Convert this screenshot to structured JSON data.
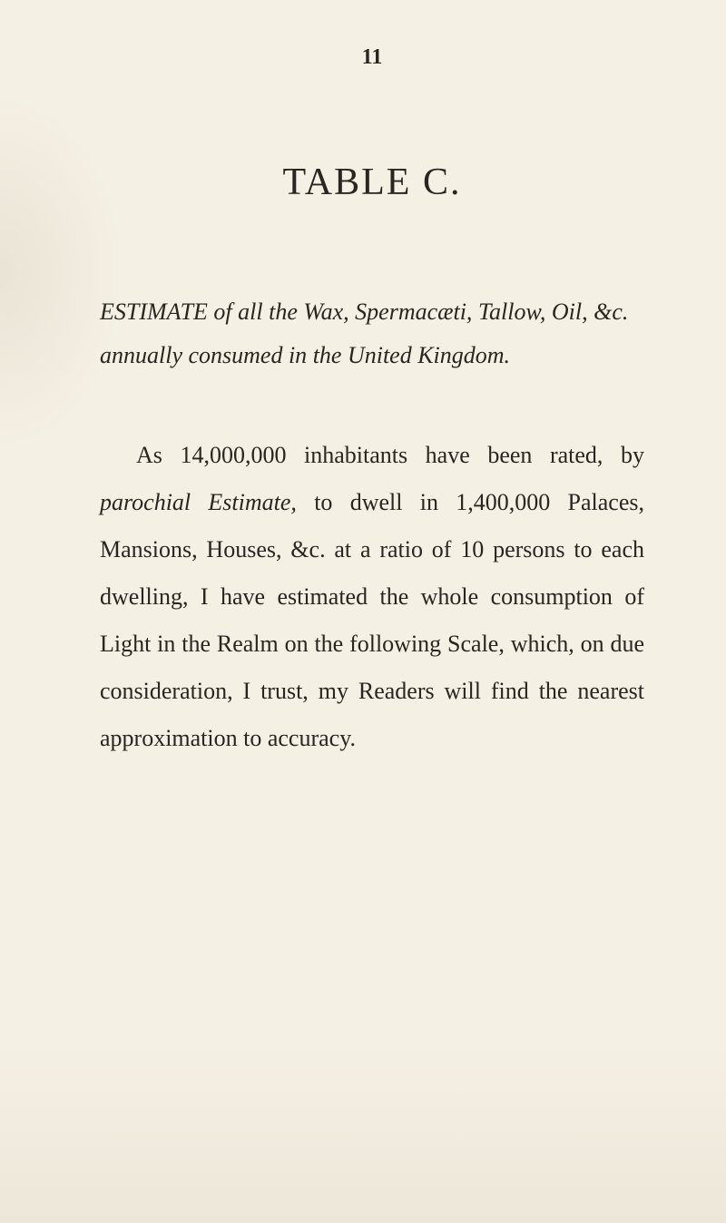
{
  "page": {
    "number": "11",
    "background_color": "#f5f0e4",
    "text_color": "#2a2520"
  },
  "title": {
    "text": "TABLE C.",
    "fontsize": 42
  },
  "heading": {
    "prefix_italic": "ESTIMATE",
    "line1_rest": " of all the Wax, Spermacæti,",
    "line2": "Tallow, Oil, &c. annually consumed in",
    "line3": "the United Kingdom.",
    "fontsize": 26
  },
  "body": {
    "text_parts": [
      {
        "text": "As 14,000,000 inhabitants have been rated, by ",
        "italic": false
      },
      {
        "text": "parochial Estimate,",
        "italic": true
      },
      {
        "text": " to dwell in 1,400,000 Palaces, Mansions, Houses, &c. at a ratio of 10 persons to each dwelling, I have estimated the whole consumption of Light in the Realm on the following Scale, which, on due consideration, I trust, my Readers will find the nearest approximation to accuracy.",
        "italic": false
      }
    ],
    "fontsize": 26,
    "line_height": 2.0
  }
}
